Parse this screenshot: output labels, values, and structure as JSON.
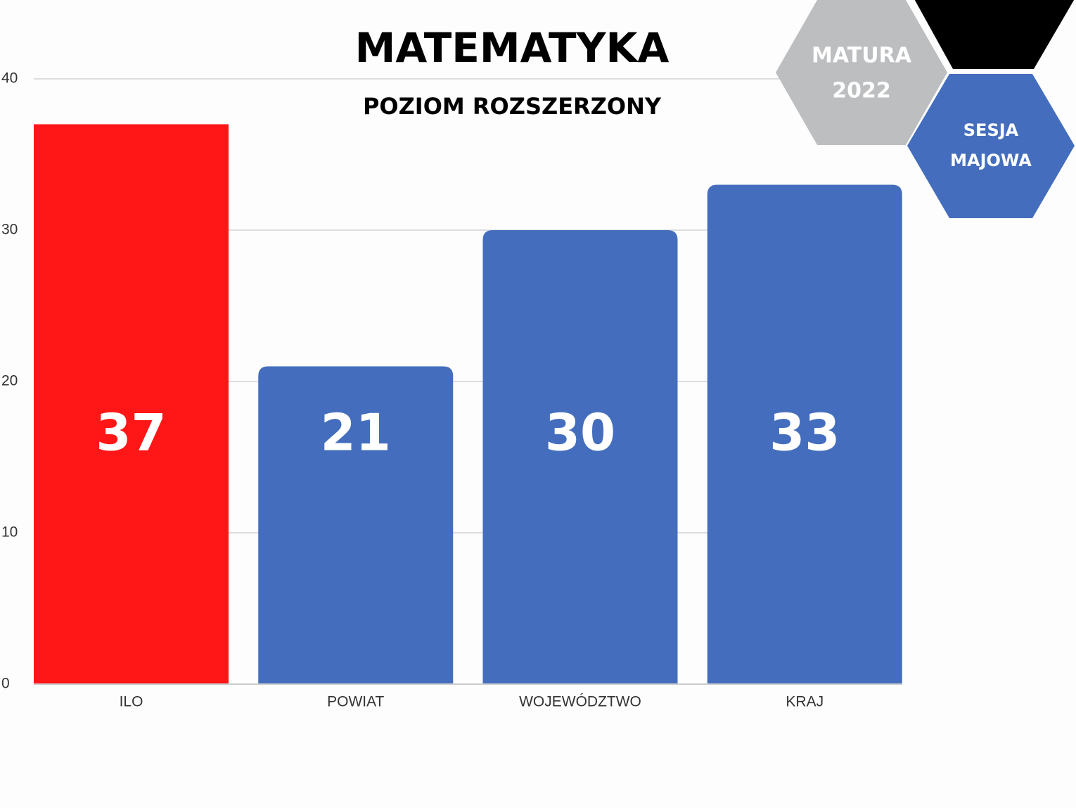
{
  "chart_data": {
    "type": "bar",
    "title": "MATEMATYKA",
    "subtitle": "POZIOM ROZSZERZONY",
    "categories": [
      "ILO",
      "POWIAT",
      "WOJEWÓDZTWO",
      "KRAJ"
    ],
    "values": [
      37,
      21,
      30,
      33
    ],
    "colors": [
      "#ff1616",
      "#446ebd",
      "#446ebd",
      "#446ebd"
    ],
    "ylim": [
      0,
      40
    ],
    "yticks": [
      0,
      10,
      20,
      30,
      40
    ],
    "grid": true,
    "badges": [
      [
        "MATURA",
        "2022"
      ],
      [
        "SESJA",
        "MAJOWA"
      ]
    ]
  }
}
